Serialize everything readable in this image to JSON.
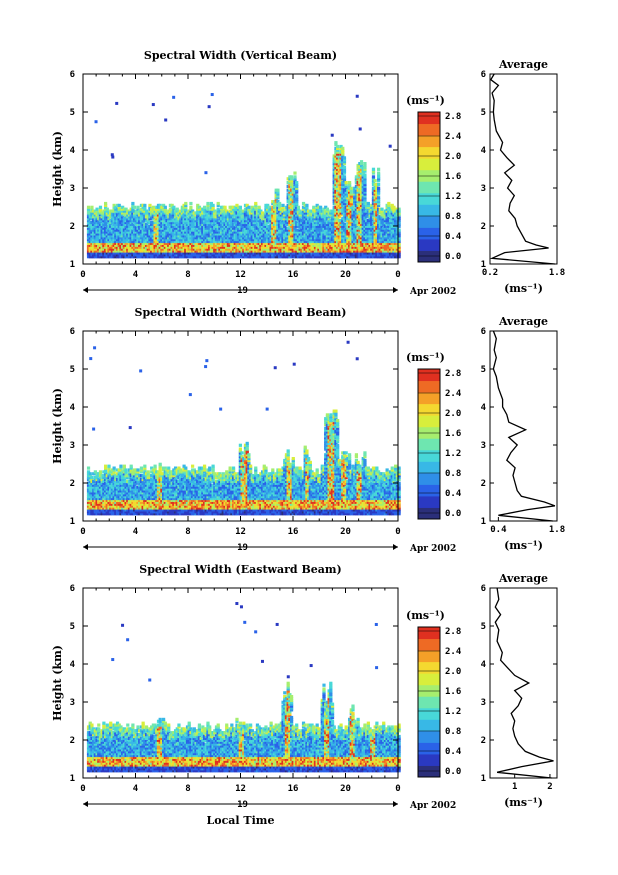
{
  "chart_data": [
    {
      "type": "heatmap",
      "title": "Spectral Width (Vertical Beam)",
      "xlabel": "",
      "ylabel": "Height (km)",
      "x_ticks": [
        "0",
        "4",
        "8",
        "12",
        "16",
        "20",
        "0"
      ],
      "y_ticks": [
        "1",
        "2",
        "3",
        "4",
        "5",
        "6"
      ],
      "xlim": [
        0,
        24
      ],
      "ylim": [
        1,
        6
      ],
      "day_label": "19",
      "date_label": "Apr 2002",
      "colorbar": {
        "unit": "(ms⁻¹)",
        "ticks": [
          "0.0",
          "0.4",
          "0.8",
          "1.2",
          "1.6",
          "2.0",
          "2.4",
          "2.8"
        ],
        "range": [
          0,
          3.0
        ]
      },
      "layer_top_km": 2.45,
      "convection": [
        {
          "t": 5.5,
          "top": 2.45,
          "w": 0.4
        },
        {
          "t": 14.5,
          "top": 3.0,
          "w": 0.4
        },
        {
          "t": 15.8,
          "top": 3.6,
          "w": 0.4
        },
        {
          "t": 19.4,
          "top": 4.2,
          "w": 0.5
        },
        {
          "t": 20.2,
          "top": 3.2,
          "w": 0.4
        },
        {
          "t": 21.0,
          "top": 3.8,
          "w": 0.4
        },
        {
          "t": 22.2,
          "top": 3.5,
          "w": 0.3
        }
      ],
      "average_profile": {
        "title": "Average",
        "xlabel": "(ms⁻¹)",
        "x_ticks": [
          "0.2",
          "1.8"
        ],
        "xlim": [
          0.2,
          1.8
        ],
        "y_ticks": [
          "1",
          "2",
          "3",
          "4",
          "5",
          "6"
        ],
        "height_km": [
          1.0,
          1.15,
          1.3,
          1.42,
          1.5,
          1.6,
          1.8,
          2.0,
          2.2,
          2.4,
          2.6,
          2.8,
          3.0,
          3.2,
          3.4,
          3.6,
          3.8,
          4.0,
          4.2,
          4.5,
          4.8,
          5.0,
          5.3,
          5.5,
          5.7,
          5.85,
          6.0
        ],
        "width_ms": [
          1.75,
          0.25,
          0.55,
          1.6,
          1.3,
          1.05,
          0.95,
          0.85,
          0.8,
          0.65,
          0.68,
          0.78,
          0.62,
          0.72,
          0.55,
          0.78,
          0.6,
          0.45,
          0.5,
          0.35,
          0.3,
          0.28,
          0.3,
          0.25,
          0.4,
          0.22,
          0.3
        ]
      }
    },
    {
      "type": "heatmap",
      "title": "Spectral Width (Northward Beam)",
      "xlabel": "",
      "ylabel": "Height (km)",
      "x_ticks": [
        "0",
        "4",
        "8",
        "12",
        "16",
        "20",
        "0"
      ],
      "y_ticks": [
        "1",
        "2",
        "3",
        "4",
        "5",
        "6"
      ],
      "xlim": [
        0,
        24
      ],
      "ylim": [
        1,
        6
      ],
      "day_label": "19",
      "date_label": "Apr 2002",
      "colorbar": {
        "unit": "(ms⁻¹)",
        "ticks": [
          "0.0",
          "0.4",
          "0.8",
          "1.2",
          "1.6",
          "2.0",
          "2.4",
          "2.8"
        ],
        "range": [
          0,
          3.0
        ]
      },
      "layer_top_km": 2.3,
      "convection": [
        {
          "t": 5.8,
          "top": 2.5,
          "w": 0.4
        },
        {
          "t": 12.2,
          "top": 3.2,
          "w": 0.4
        },
        {
          "t": 15.6,
          "top": 3.0,
          "w": 0.4
        },
        {
          "t": 17.0,
          "top": 3.1,
          "w": 0.3
        },
        {
          "t": 18.8,
          "top": 4.0,
          "w": 0.5
        },
        {
          "t": 19.8,
          "top": 3.0,
          "w": 0.4
        },
        {
          "t": 21.0,
          "top": 2.8,
          "w": 0.4
        }
      ],
      "average_profile": {
        "title": "Average",
        "xlabel": "(ms⁻¹)",
        "x_ticks": [
          "0.4",
          "1.8"
        ],
        "xlim": [
          0.2,
          1.8
        ],
        "y_ticks": [
          "1",
          "2",
          "3",
          "4",
          "5",
          "6"
        ],
        "height_km": [
          1.0,
          1.15,
          1.3,
          1.4,
          1.5,
          1.65,
          1.8,
          2.0,
          2.2,
          2.4,
          2.6,
          2.8,
          3.0,
          3.2,
          3.4,
          3.6,
          3.8,
          4.0,
          4.2,
          4.5,
          4.8,
          5.0,
          5.3,
          5.5,
          5.8,
          6.0
        ],
        "width_ms": [
          1.7,
          0.4,
          1.1,
          1.75,
          1.5,
          0.95,
          0.85,
          0.8,
          0.75,
          0.8,
          0.6,
          0.7,
          0.85,
          0.65,
          1.05,
          0.65,
          0.6,
          0.5,
          0.5,
          0.4,
          0.35,
          0.28,
          0.35,
          0.3,
          0.35,
          0.28
        ]
      }
    },
    {
      "type": "heatmap",
      "title": "Spectral Width (Eastward Beam)",
      "xlabel": "Local Time",
      "ylabel": "Height (km)",
      "x_ticks": [
        "0",
        "4",
        "8",
        "12",
        "16",
        "20",
        "0"
      ],
      "y_ticks": [
        "1",
        "2",
        "3",
        "4",
        "5",
        "6"
      ],
      "xlim": [
        0,
        24
      ],
      "ylim": [
        1,
        6
      ],
      "day_label": "19",
      "date_label": "Apr 2002",
      "colorbar": {
        "unit": "(ms⁻¹)",
        "ticks": [
          "0.0",
          "0.4",
          "0.8",
          "1.2",
          "1.6",
          "2.0",
          "2.4",
          "2.8"
        ],
        "range": [
          0,
          3.0
        ]
      },
      "layer_top_km": 2.3,
      "convection": [
        {
          "t": 5.8,
          "top": 2.6,
          "w": 0.4
        },
        {
          "t": 12.0,
          "top": 2.7,
          "w": 0.4
        },
        {
          "t": 15.5,
          "top": 3.5,
          "w": 0.4
        },
        {
          "t": 18.5,
          "top": 3.5,
          "w": 0.4
        },
        {
          "t": 20.5,
          "top": 2.9,
          "w": 0.4
        },
        {
          "t": 22.0,
          "top": 2.5,
          "w": 0.4
        }
      ],
      "average_profile": {
        "title": "Average",
        "xlabel": "(ms⁻¹)",
        "x_ticks": [
          "1",
          "2"
        ],
        "xlim": [
          0.3,
          2.2
        ],
        "y_ticks": [
          "1",
          "2",
          "3",
          "4",
          "5",
          "6"
        ],
        "height_km": [
          1.0,
          1.15,
          1.3,
          1.45,
          1.55,
          1.7,
          1.9,
          2.1,
          2.3,
          2.5,
          2.7,
          2.9,
          3.1,
          3.3,
          3.5,
          3.7,
          3.9,
          4.1,
          4.3,
          4.6,
          4.9,
          5.1,
          5.3,
          5.5,
          5.7,
          6.0
        ],
        "width_ms": [
          2.05,
          0.5,
          1.2,
          2.1,
          1.7,
          1.3,
          1.1,
          1.0,
          0.95,
          1.0,
          0.9,
          1.1,
          1.2,
          1.0,
          1.4,
          1.0,
          0.8,
          0.6,
          0.65,
          0.5,
          0.55,
          0.45,
          0.6,
          0.45,
          0.55,
          0.5
        ]
      }
    }
  ]
}
